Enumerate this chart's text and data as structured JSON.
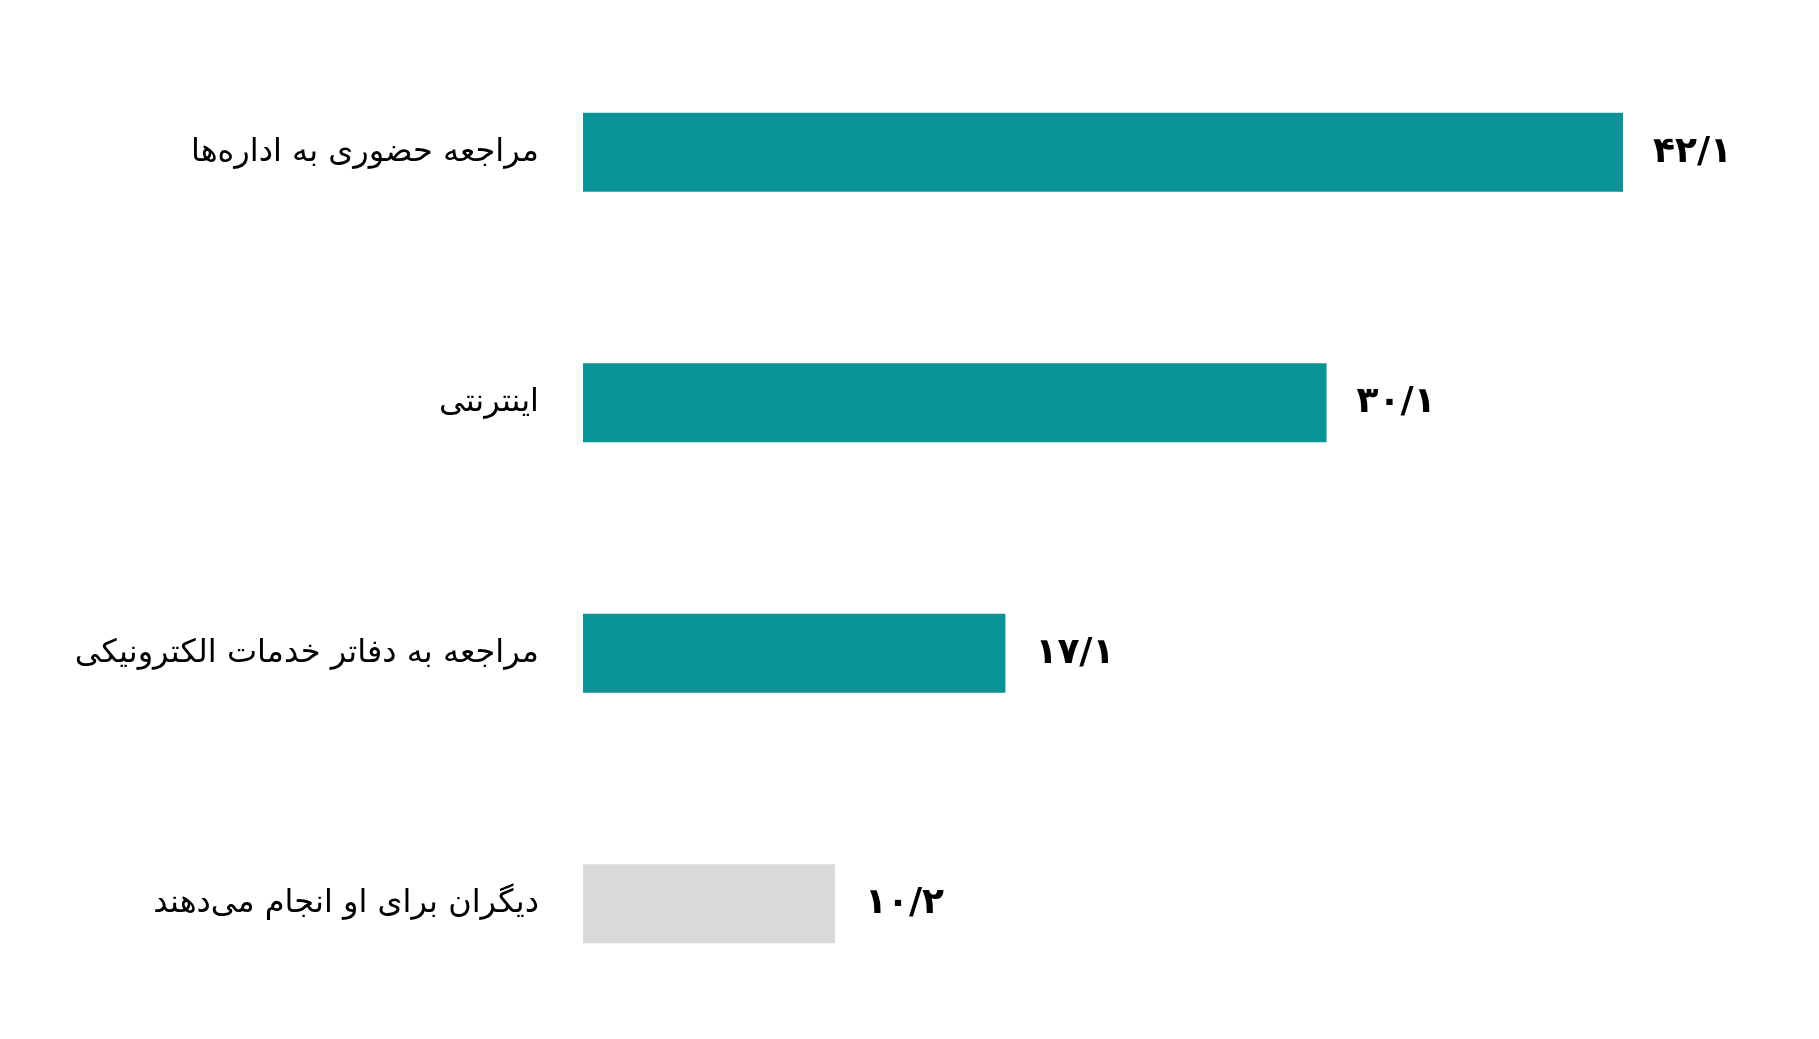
{
  "chart_data": {
    "type": "bar",
    "orientation": "horizontal",
    "categories": [
      "مراجعه حضوری به اداره‌ها",
      "اینترنتی",
      "مراجعه به دفاتر خدمات الکترونیکی",
      "دیگران برای او انجام می‌دهند"
    ],
    "values": [
      42.1,
      30.1,
      17.1,
      10.2
    ],
    "colors": [
      "#0a9396",
      "#0a9396",
      "#0a9396",
      "#d9d9d9"
    ],
    "value_labels": [
      "۴۲/۱",
      "۳۰/۱",
      "۱۷/۱",
      "۱۰/۲"
    ]
  }
}
